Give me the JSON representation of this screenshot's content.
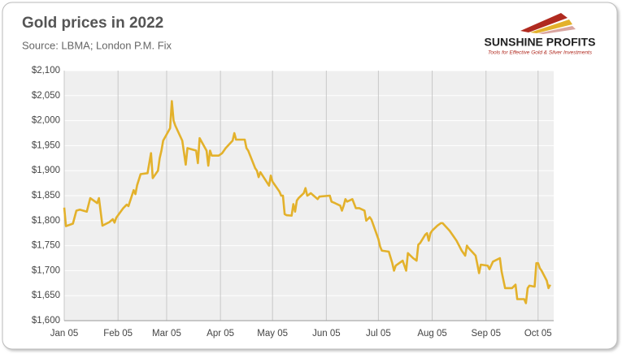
{
  "chart_data": {
    "type": "line",
    "title": "Gold prices in 2022",
    "subtitle": "Source: LBMA; London P.M. Fix",
    "color": "#e3b12b",
    "grid": true,
    "x": [
      "Jan 05",
      "Jan 06",
      "Jan 10",
      "Jan 12",
      "Jan 14",
      "Jan 18",
      "Jan 20",
      "Jan 24",
      "Jan 25",
      "Jan 27",
      "Jan 31",
      "Feb 02",
      "Feb 03",
      "Feb 04",
      "Feb 08",
      "Feb 10",
      "Feb 11",
      "Feb 14",
      "Feb 15",
      "Feb 16",
      "Feb 18",
      "Feb 22",
      "Feb 24",
      "Feb 25",
      "Feb 28",
      "Mar 01",
      "Mar 02",
      "Mar 03",
      "Mar 07",
      "Mar 08",
      "Mar 09",
      "Mar 10",
      "Mar 14",
      "Mar 16",
      "Mar 17",
      "Mar 22",
      "Mar 23",
      "Mar 24",
      "Mar 28",
      "Mar 29",
      "Mar 30",
      "Mar 31",
      "Apr 04",
      "Apr 06",
      "Apr 08",
      "Apr 12",
      "Apr 13",
      "Apr 14",
      "Apr 19",
      "Apr 20",
      "Apr 21",
      "Apr 25",
      "Apr 26",
      "Apr 27",
      "Apr 28",
      "May 03",
      "May 04",
      "May 05",
      "May 09",
      "May 10",
      "May 11",
      "May 12",
      "May 13",
      "May 16",
      "May 17",
      "May 18",
      "May 19",
      "May 20",
      "May 23",
      "May 24",
      "May 25",
      "May 26",
      "May 27",
      "May 31",
      "Jun 01",
      "Jun 07",
      "Jun 08",
      "Jun 10",
      "Jun 13",
      "Jun 14",
      "Jun 15",
      "Jun 16",
      "Jun 17",
      "Jun 20",
      "Jun 22",
      "Jun 24",
      "Jun 27",
      "Jun 28",
      "Jun 30",
      "Jul 01",
      "Jul 05",
      "Jul 06",
      "Jul 07",
      "Jul 11",
      "Jul 13",
      "Jul 14",
      "Jul 15",
      "Jul 19",
      "Jul 21",
      "Jul 22",
      "Jul 25",
      "Jul 27",
      "Jul 28",
      "Jul 29",
      "Aug 01",
      "Aug 02",
      "Aug 03",
      "Aug 04",
      "Aug 05",
      "Aug 08",
      "Aug 10",
      "Aug 11",
      "Aug 15",
      "Aug 17",
      "Aug 19",
      "Aug 22",
      "Aug 24",
      "Aug 25",
      "Aug 26",
      "Aug 30",
      "Aug 31",
      "Sep 01",
      "Sep 02",
      "Sep 06",
      "Sep 07",
      "Sep 09",
      "Sep 13",
      "Sep 14",
      "Sep 16",
      "Sep 20",
      "Sep 22",
      "Sep 23",
      "Sep 27",
      "Sep 28",
      "Sep 29",
      "Sep 30",
      "Oct 03",
      "Oct 04",
      "Oct 05",
      "Oct 06",
      "Oct 07",
      "Oct 10",
      "Oct 11",
      "Oct 12"
    ],
    "values": [
      1826,
      1789,
      1794,
      1820,
      1822,
      1818,
      1845,
      1835,
      1845,
      1790,
      1797,
      1803,
      1796,
      1806,
      1825,
      1832,
      1829,
      1861,
      1853,
      1871,
      1893,
      1895,
      1935,
      1885,
      1900,
      1925,
      1940,
      1960,
      1985,
      2039,
      2000,
      1990,
      1960,
      1912,
      1945,
      1940,
      1915,
      1965,
      1940,
      1910,
      1940,
      1930,
      1930,
      1935,
      1945,
      1960,
      1975,
      1962,
      1962,
      1945,
      1940,
      1905,
      1900,
      1887,
      1897,
      1870,
      1890,
      1878,
      1858,
      1850,
      1850,
      1813,
      1811,
      1810,
      1833,
      1818,
      1840,
      1845,
      1855,
      1865,
      1850,
      1852,
      1855,
      1843,
      1848,
      1850,
      1838,
      1835,
      1830,
      1820,
      1830,
      1843,
      1838,
      1843,
      1825,
      1825,
      1820,
      1800,
      1807,
      1802,
      1763,
      1748,
      1740,
      1738,
      1715,
      1700,
      1710,
      1720,
      1700,
      1735,
      1725,
      1720,
      1752,
      1755,
      1772,
      1775,
      1760,
      1775,
      1780,
      1790,
      1795,
      1795,
      1780,
      1770,
      1760,
      1740,
      1730,
      1750,
      1745,
      1730,
      1713,
      1695,
      1712,
      1710,
      1703,
      1718,
      1725,
      1698,
      1665,
      1665,
      1672,
      1643,
      1643,
      1635,
      1665,
      1670,
      1668,
      1715,
      1715,
      1705,
      1700,
      1680,
      1665,
      1672
    ],
    "xlim": [
      "Jan 05",
      "Oct 14"
    ],
    "xticks": [
      "Jan 05",
      "Feb 05",
      "Mar 05",
      "Apr 05",
      "May 05",
      "Jun 05",
      "Jul 05",
      "Aug 05",
      "Sep 05",
      "Oct 05"
    ],
    "ylim": [
      1600,
      2100
    ],
    "yticks": [
      {
        "value": 1600,
        "label": "$1,600"
      },
      {
        "value": 1650,
        "label": "$1,650"
      },
      {
        "value": 1700,
        "label": "$1,700"
      },
      {
        "value": 1750,
        "label": "$1,750"
      },
      {
        "value": 1800,
        "label": "$1,800"
      },
      {
        "value": 1850,
        "label": "$1,850"
      },
      {
        "value": 1900,
        "label": "$1,900"
      },
      {
        "value": 1950,
        "label": "$1,950"
      },
      {
        "value": 2000,
        "label": "$2,000"
      },
      {
        "value": 2050,
        "label": "$2,050"
      },
      {
        "value": 2100,
        "label": "$2,100"
      }
    ]
  },
  "logo": {
    "name": "SUNSHINE PROFITS",
    "tagline": "Tools for Effective Gold & Silver Investments"
  }
}
